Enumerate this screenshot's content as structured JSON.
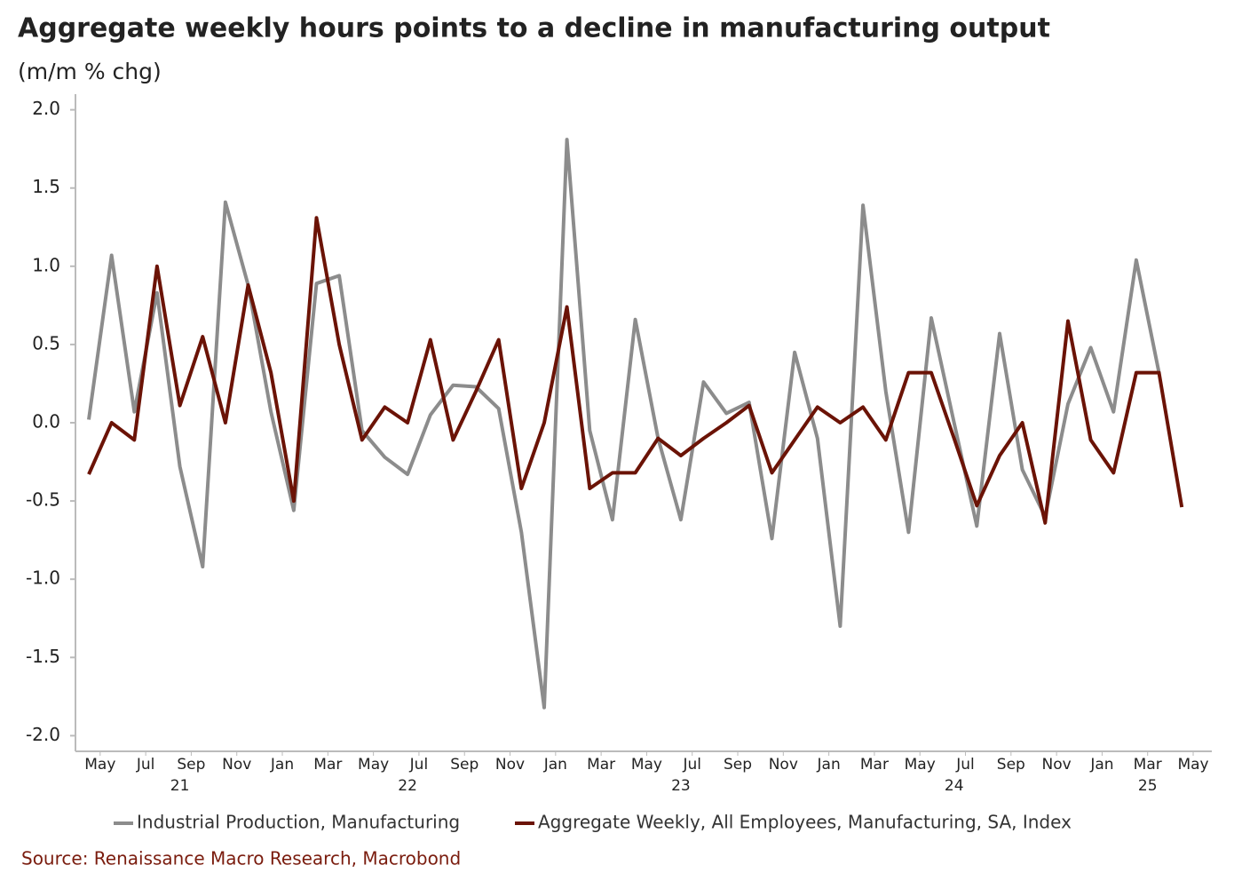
{
  "chart_data": {
    "type": "line",
    "title": "Aggregate weekly hours points to a decline in manufacturing output",
    "subtitle": "(m/m % chg)",
    "source": "Source: Renaissance Macro Research, Macrobond",
    "x": [
      "2021-05",
      "2021-06",
      "2021-07",
      "2021-08",
      "2021-09",
      "2021-10",
      "2021-11",
      "2021-12",
      "2022-01",
      "2022-02",
      "2022-03",
      "2022-04",
      "2022-05",
      "2022-06",
      "2022-07",
      "2022-08",
      "2022-09",
      "2022-10",
      "2022-11",
      "2022-12",
      "2023-01",
      "2023-02",
      "2023-03",
      "2023-04",
      "2023-05",
      "2023-06",
      "2023-07",
      "2023-08",
      "2023-09",
      "2023-10",
      "2023-11",
      "2023-12",
      "2024-01",
      "2024-02",
      "2024-03",
      "2024-04",
      "2024-05",
      "2024-06",
      "2024-07",
      "2024-08",
      "2024-09",
      "2024-10",
      "2024-11",
      "2024-12",
      "2025-01",
      "2025-02",
      "2025-03",
      "2025-04",
      "2025-05"
    ],
    "series": [
      {
        "name": "Industrial Production, Manufacturing",
        "color": "#8c8c8c",
        "values": [
          0.02,
          1.07,
          0.07,
          0.83,
          -0.28,
          -0.92,
          1.41,
          0.88,
          0.07,
          -0.56,
          0.89,
          0.94,
          -0.05,
          -0.22,
          -0.33,
          0.05,
          0.24,
          0.23,
          0.09,
          -0.7,
          -1.82,
          1.81,
          -0.05,
          -0.62,
          0.66,
          -0.1,
          -0.62,
          0.26,
          0.06,
          0.13,
          -0.74,
          0.45,
          -0.1,
          -1.3,
          1.39,
          0.2,
          -0.7,
          0.67,
          0.0,
          -0.66,
          0.57,
          -0.3,
          -0.6,
          0.12,
          0.48,
          0.07,
          1.04,
          0.32,
          null
        ]
      },
      {
        "name": "Aggregate Weekly, All Employees, Manufacturing, SA, Index",
        "color": "#6b1306",
        "values": [
          -0.33,
          0.0,
          -0.11,
          1.0,
          0.11,
          0.55,
          0.0,
          0.88,
          0.32,
          -0.5,
          1.31,
          0.5,
          -0.11,
          0.1,
          0.0,
          0.53,
          -0.11,
          0.2,
          0.53,
          -0.42,
          0.0,
          0.74,
          -0.42,
          -0.32,
          -0.32,
          -0.1,
          -0.21,
          -0.1,
          0.0,
          0.11,
          -0.32,
          -0.11,
          0.1,
          0.0,
          0.1,
          -0.11,
          0.32,
          0.32,
          -0.1,
          -0.53,
          -0.21,
          0.0,
          -0.64,
          0.65,
          -0.11,
          -0.32,
          0.32,
          0.32,
          -0.54
        ]
      }
    ],
    "ylim": [
      -2.1,
      2.1
    ],
    "yticks": [
      {
        "value": 2.0,
        "label": "2.0"
      },
      1.5,
      {
        "value": 1.0,
        "label": "1.0"
      },
      0.5,
      {
        "value": 0.0,
        "label": "0.0"
      },
      -0.5,
      {
        "value": -1.0,
        "label": "-1.0"
      },
      -1.5,
      {
        "value": -2.0,
        "label": "-2.0"
      }
    ],
    "xticks": [
      {
        "value": "2021-05",
        "label": "May"
      },
      {
        "value": "2021-07",
        "label": "Jul"
      },
      {
        "value": "2021-09",
        "label": "Sep"
      },
      {
        "value": "2021-11",
        "label": "Nov"
      },
      {
        "value": "2022-01",
        "label": "Jan"
      },
      {
        "value": "2022-03",
        "label": "Mar"
      },
      {
        "value": "2022-05",
        "label": "May"
      },
      {
        "value": "2022-07",
        "label": "Jul"
      },
      {
        "value": "2022-09",
        "label": "Sep"
      },
      {
        "value": "2022-11",
        "label": "Nov"
      },
      {
        "value": "2023-01",
        "label": "Jan"
      },
      {
        "value": "2023-03",
        "label": "Mar"
      },
      {
        "value": "2023-05",
        "label": "May"
      },
      {
        "value": "2023-07",
        "label": "Jul"
      },
      {
        "value": "2023-09",
        "label": "Sep"
      },
      {
        "value": "2023-11",
        "label": "Nov"
      },
      {
        "value": "2024-01",
        "label": "Jan"
      },
      {
        "value": "2024-03",
        "label": "Mar"
      },
      {
        "value": "2024-05",
        "label": "May"
      },
      {
        "value": "2024-07",
        "label": "Jul"
      },
      {
        "value": "2024-09",
        "label": "Sep"
      },
      {
        "value": "2024-11",
        "label": "Nov"
      },
      {
        "value": "2025-01",
        "label": "Jan"
      },
      {
        "value": "2025-03",
        "label": "Mar"
      },
      {
        "value": "2025-05",
        "label": "May"
      }
    ],
    "year_labels": [
      {
        "value": "2021",
        "label": "21"
      },
      {
        "value": "2022",
        "label": "22"
      },
      {
        "value": "2023",
        "label": "23"
      },
      {
        "value": "2024",
        "label": "24"
      },
      {
        "value": "2025",
        "label": "25"
      }
    ],
    "grid": false
  }
}
